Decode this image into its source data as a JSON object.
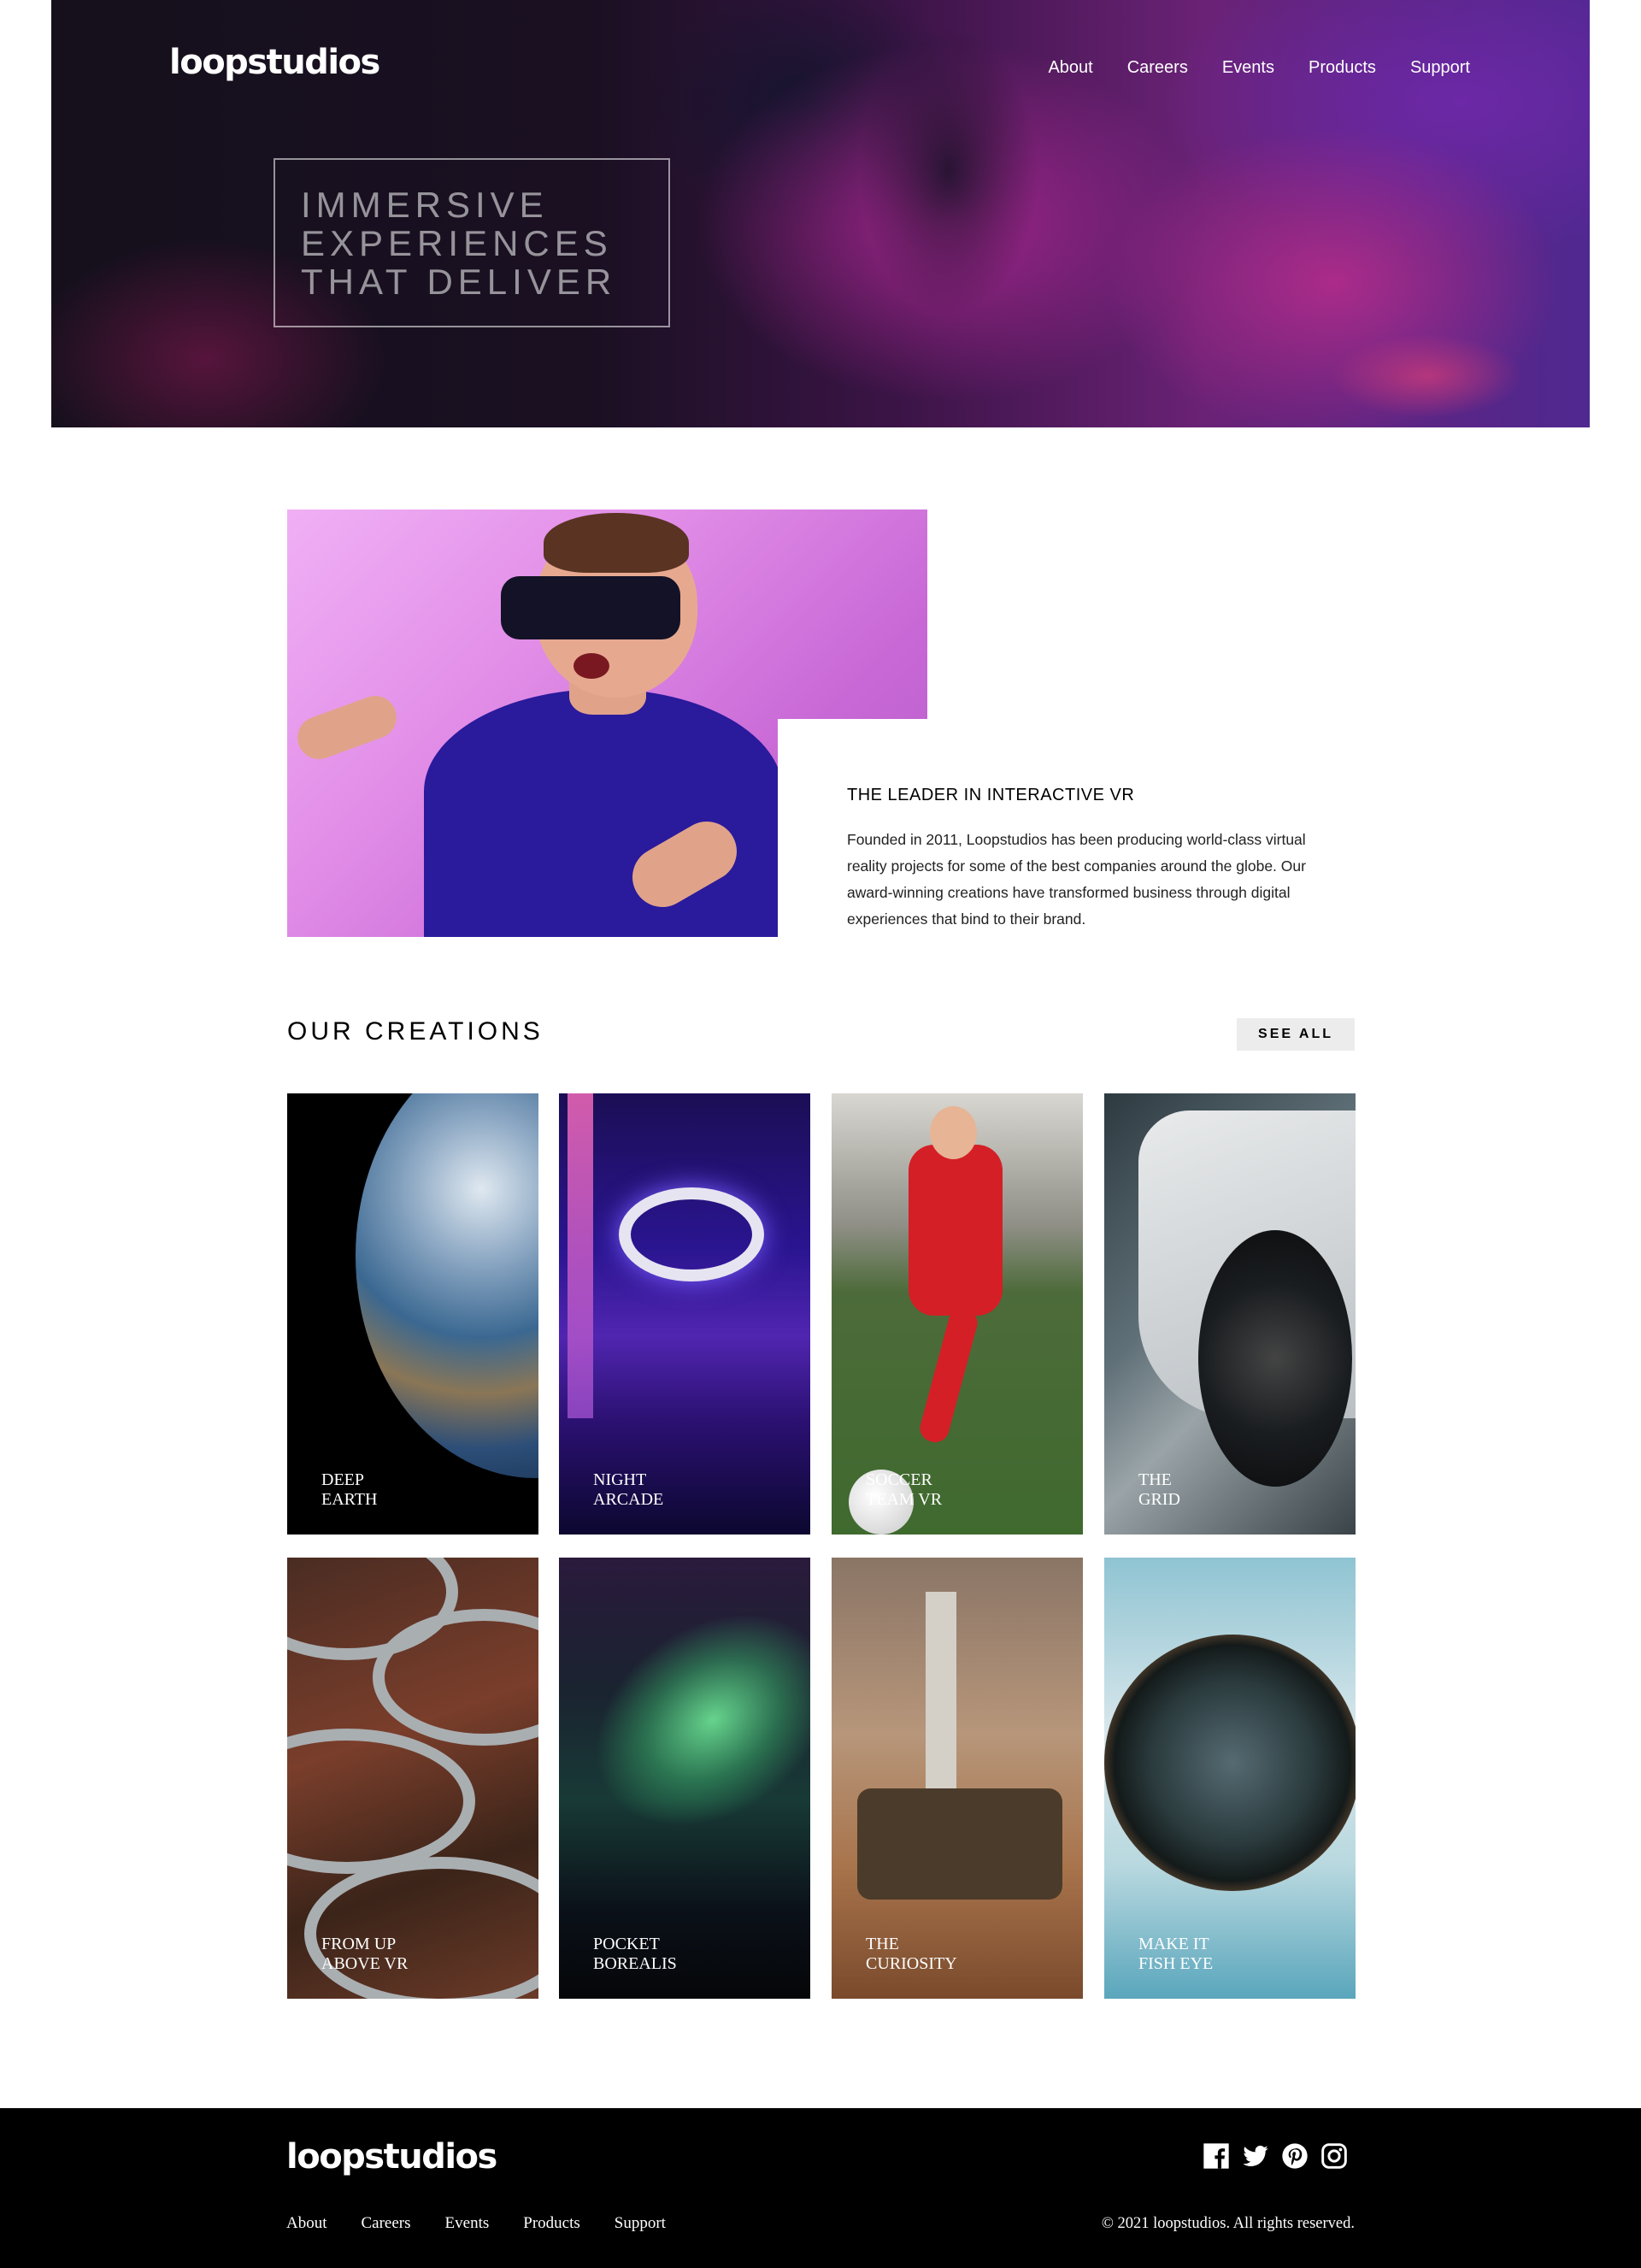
{
  "header": {
    "logo": "loopstudios",
    "nav": [
      "About",
      "Careers",
      "Events",
      "Products",
      "Support"
    ],
    "hero_lines": [
      "IMMERSIVE",
      "EXPERIENCES",
      "THAT DELIVER"
    ]
  },
  "intro": {
    "title": "THE LEADER IN INTERACTIVE VR",
    "text": "Founded in 2011, Loopstudios has been producing world-class virtual reality projects for some of the best companies around the globe. Our award-winning creations have transformed business through digital experiences that bind to their brand."
  },
  "creations": {
    "title": "OUR CREATIONS",
    "see_all": "SEE ALL",
    "cards": [
      {
        "line1": "DEEP",
        "line2": "EARTH"
      },
      {
        "line1": "NIGHT",
        "line2": "ARCADE"
      },
      {
        "line1": "SOCCER",
        "line2": "TEAM VR"
      },
      {
        "line1": "THE",
        "line2": "GRID"
      },
      {
        "line1": "FROM UP",
        "line2": "ABOVE VR"
      },
      {
        "line1": "POCKET",
        "line2": "BOREALIS"
      },
      {
        "line1": "THE",
        "line2": "CURIOSITY"
      },
      {
        "line1": "MAKE IT",
        "line2": "FISH EYE"
      }
    ]
  },
  "footer": {
    "logo": "loopstudios",
    "nav": [
      "About",
      "Careers",
      "Events",
      "Products",
      "Support"
    ],
    "copyright": "© 2021 loopstudios. All rights reserved.",
    "social_icons": [
      "facebook-icon",
      "twitter-icon",
      "pinterest-icon",
      "instagram-icon"
    ]
  }
}
